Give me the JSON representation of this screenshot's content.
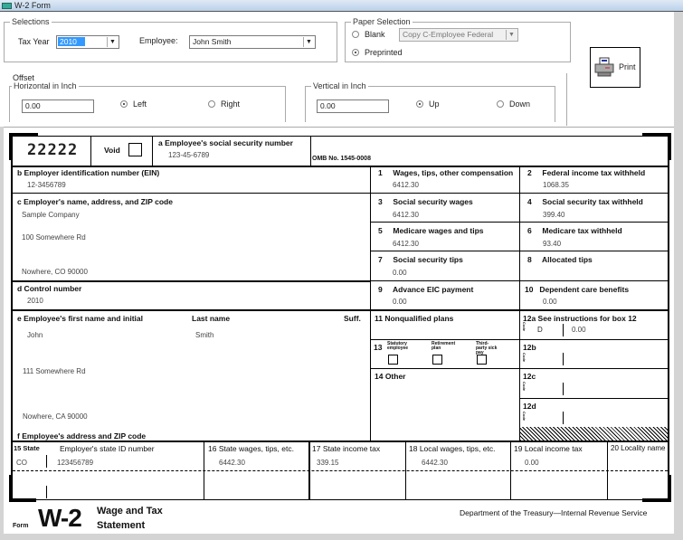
{
  "window": {
    "title": "W-2 Form"
  },
  "selections": {
    "legend": "Selections",
    "tax_year_label": "Tax Year",
    "tax_year": "2010",
    "employee_label": "Employee:",
    "employee": "John Smith"
  },
  "paper": {
    "legend": "Paper Selection",
    "blank_label": "Blank",
    "copy_select": "Copy C-Employee Federal",
    "preprinted_label": "Preprinted",
    "selected": "Preprinted"
  },
  "offset": {
    "legend": "Offset",
    "horizontal_legend": "Horizontal in Inch",
    "horizontal_value": "0.00",
    "left_label": "Left",
    "right_label": "Right",
    "horizontal_selected": "Left",
    "vertical_legend": "Vertical in Inch",
    "vertical_value": "0.00",
    "up_label": "Up",
    "down_label": "Down",
    "vertical_selected": "Up"
  },
  "print_label": "Print",
  "form": {
    "code": "22222",
    "void_label": "Void",
    "a_label": "a  Employee's social security number",
    "ssn": "123-45-6789",
    "omb": "OMB No. 1545-0008",
    "b_label": "b  Employer identification number (EIN)",
    "ein": "12-3456789",
    "c_label": "c  Employer's name, address, and ZIP code",
    "employer_name": "Sample Company",
    "employer_address": "100 Somewhere Rd",
    "employer_city": "Nowhere, CO 90000",
    "d_label": "d  Control number",
    "control": "2010",
    "e_label": "e  Employee's first name and initial",
    "last_label": "Last name",
    "suff_label": "Suff.",
    "first": "John",
    "last": "Smith",
    "emp_address": "111 Somewhere Rd",
    "emp_city": "Nowhere, CA 90000",
    "f_label": "f  Employee's address and ZIP code",
    "boxes": [
      {
        "n": "1",
        "label": "Wages, tips, other compensation",
        "value": "6412.30"
      },
      {
        "n": "2",
        "label": "Federal income tax withheld",
        "value": "1068.35"
      },
      {
        "n": "3",
        "label": "Social security wages",
        "value": "6412.30"
      },
      {
        "n": "4",
        "label": "Social security tax withheld",
        "value": "399.40"
      },
      {
        "n": "5",
        "label": "Medicare wages and tips",
        "value": "6412.30"
      },
      {
        "n": "6",
        "label": "Medicare tax withheld",
        "value": "93.40"
      },
      {
        "n": "7",
        "label": "Social security tips",
        "value": "0.00"
      },
      {
        "n": "8",
        "label": "Allocated tips",
        "value": ""
      },
      {
        "n": "9",
        "label": "Advance EIC payment",
        "value": "0.00"
      },
      {
        "n": "10",
        "label": "Dependent care benefits",
        "value": "0.00"
      }
    ],
    "b11_label": "11   Nonqualified plans",
    "b13": {
      "n": "13",
      "statutory": "Statutory employee",
      "retirement": "Retirement plan",
      "thirdparty": "Third-party sick pay"
    },
    "b14_label": "14   Other",
    "b12a_label": "12a  See instructions for box 12",
    "b12a_code": "D",
    "b12a_value": "0.00",
    "b12b_label": "12b",
    "b12c_label": "12c",
    "b12d_label": "12d",
    "code_word": "Code",
    "state_headers": {
      "s15": "15  State",
      "state_id": "Employer's state ID number",
      "s16": "16 State wages, tips, etc.",
      "s17": "17 State income tax",
      "s18": "18 Local wages, tips, etc.",
      "s19": "19  Local income tax",
      "s20": "20 Locality name"
    },
    "state_row": {
      "state": "CO",
      "state_id": "123456789",
      "wages": "6442.30",
      "income_tax": "339.15",
      "local_wages": "6442.30",
      "local_tax": "0.00",
      "locality": ""
    },
    "form_word": "Form",
    "w2": "W-2",
    "title1": "Wage and Tax",
    "title2": "Statement",
    "dept": "Department of the Treasury—Internal Revenue Service"
  }
}
